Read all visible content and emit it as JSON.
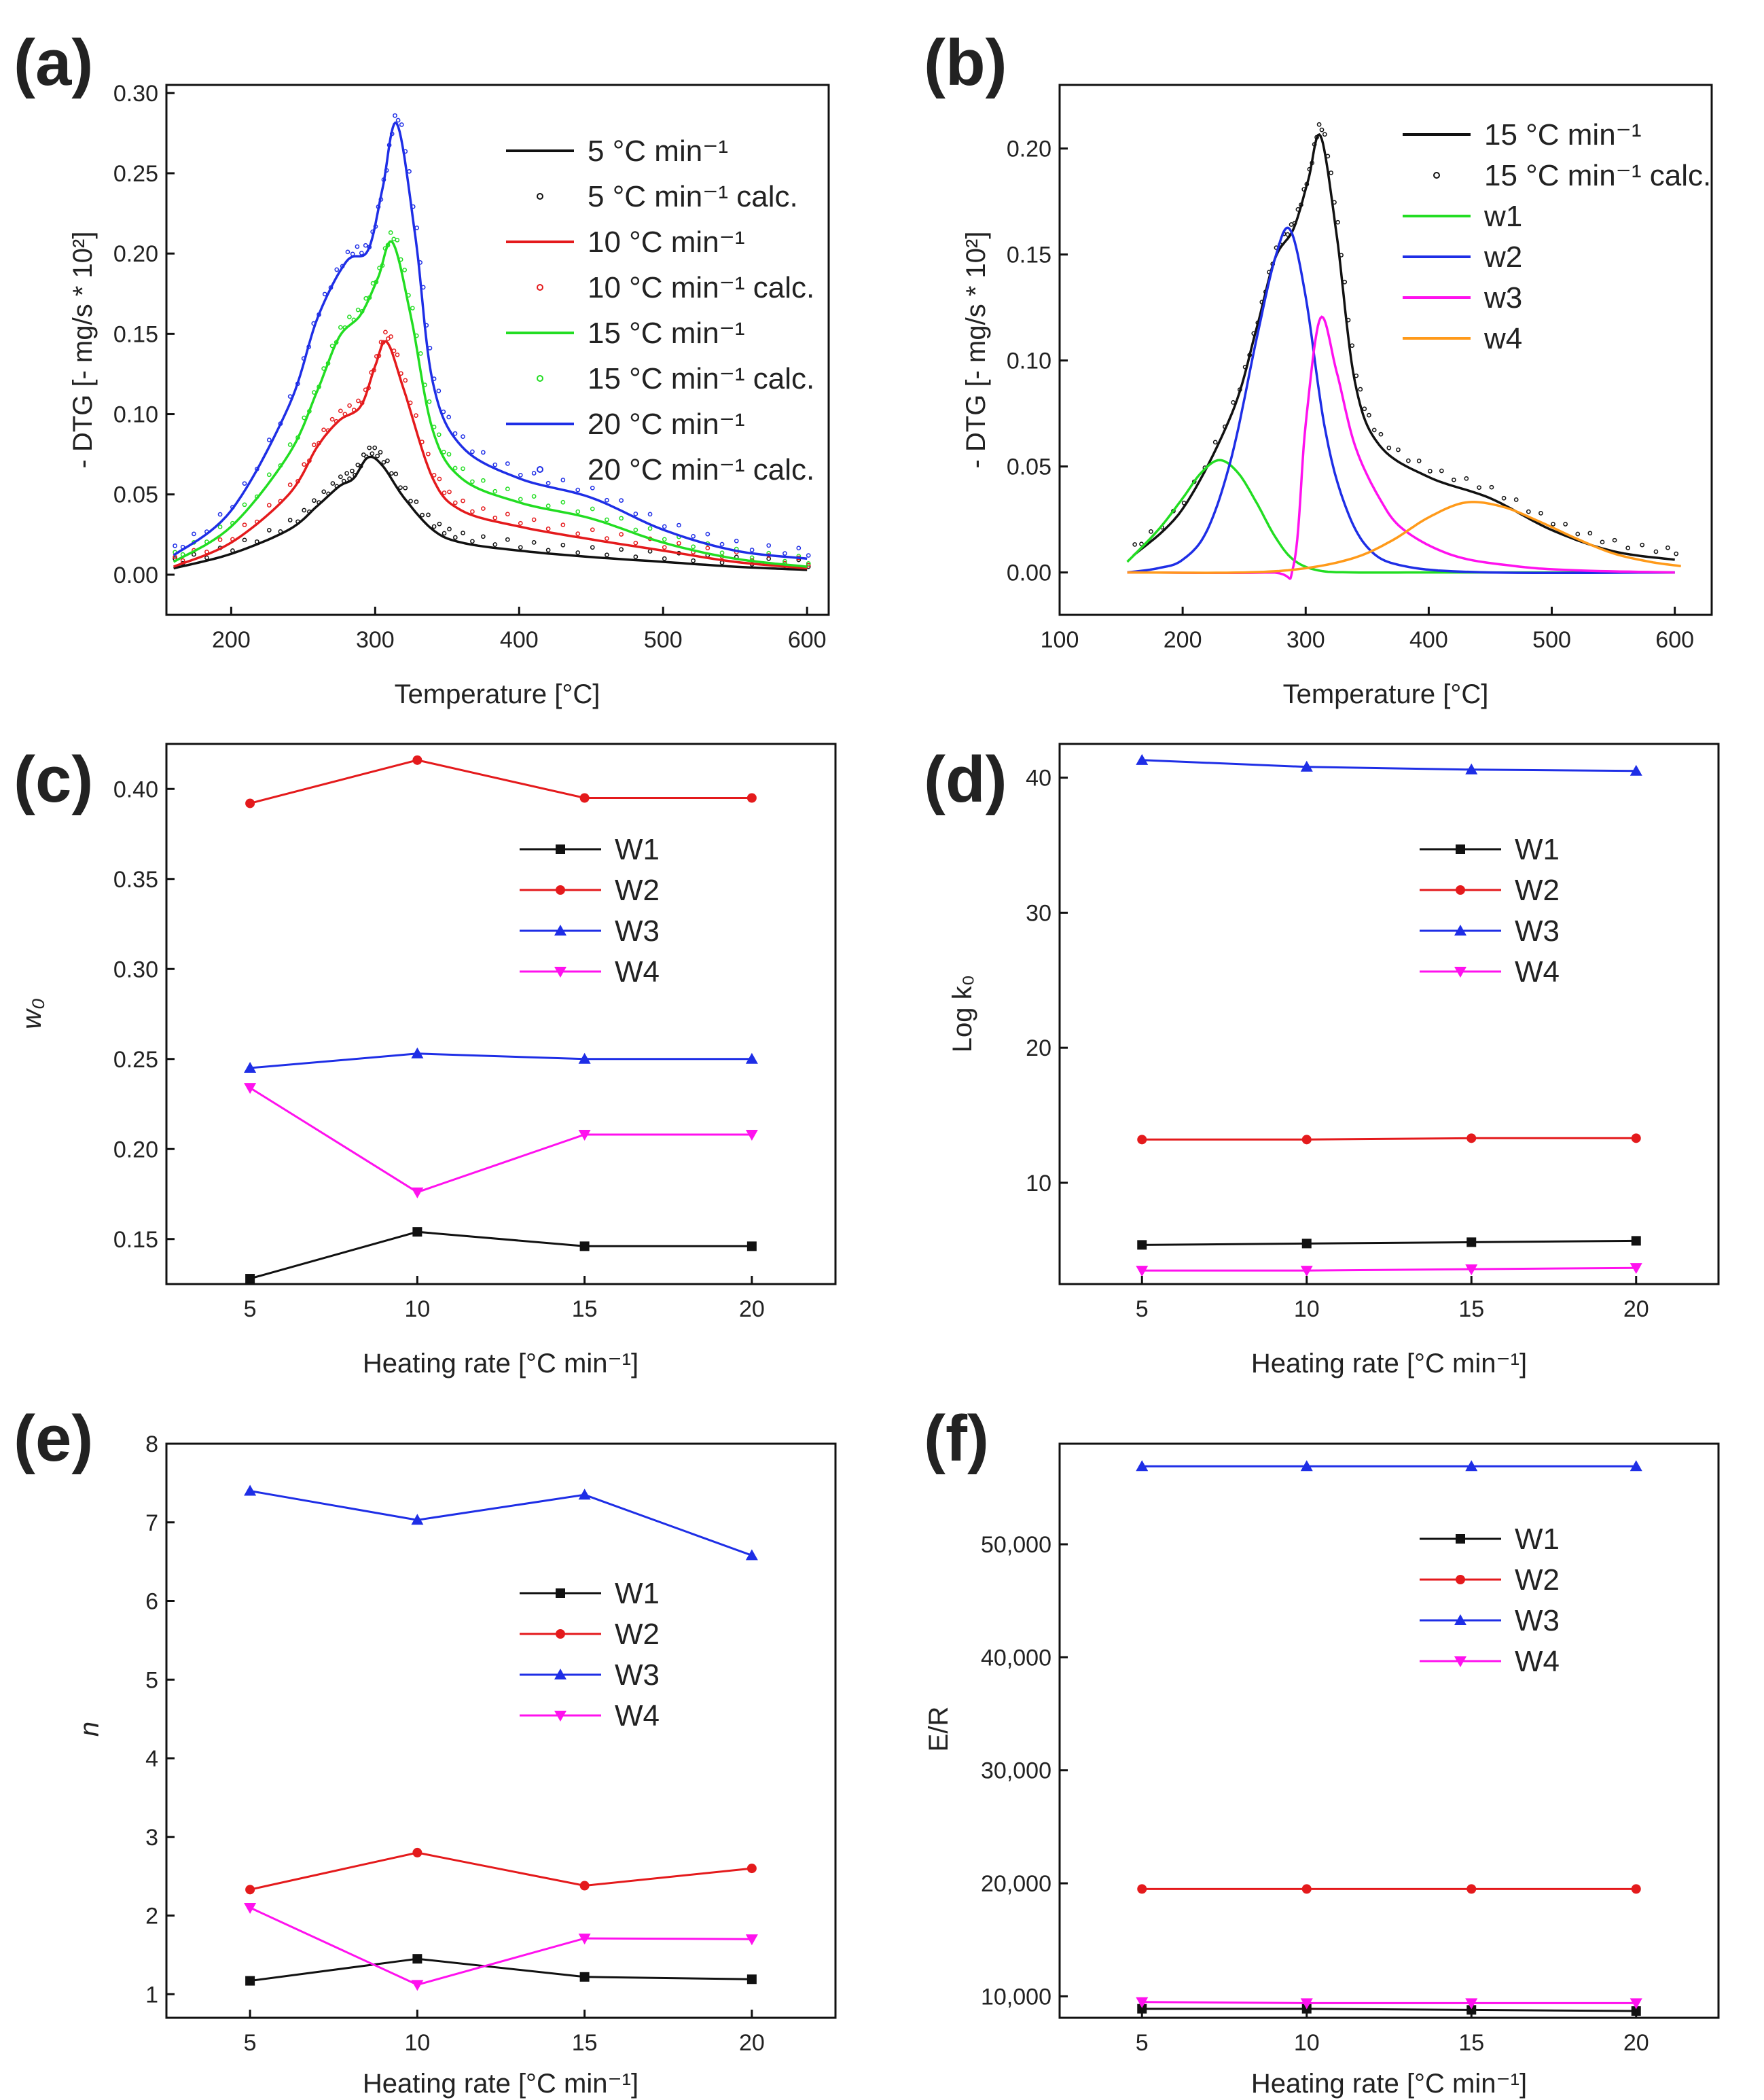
{
  "colors": {
    "black": "#111111",
    "red": "#e41a1c",
    "green": "#22dd22",
    "blue": "#1e2ee6",
    "magenta": "#ff11ee",
    "orange": "#ff9a1a",
    "axis": "#111111"
  },
  "chart_data": [
    {
      "id": "a",
      "panel_label": "(a)",
      "type": "line",
      "xlabel": "Temperature [°C]",
      "ylabel": "- DTG [- mg/s * 10²]",
      "xlim": [
        155,
        615
      ],
      "ylim": [
        -0.025,
        0.305
      ],
      "xticks": [
        200,
        300,
        400,
        500,
        600
      ],
      "yticks": [
        0.0,
        0.05,
        0.1,
        0.15,
        0.2,
        0.25,
        0.3
      ],
      "ytick_labels": [
        "0.00",
        "0.05",
        "0.10",
        "0.15",
        "0.20",
        "0.25",
        "0.30"
      ],
      "legend": [
        {
          "label": "5 °C min⁻¹",
          "color": "black",
          "style": "line"
        },
        {
          "label": "5 °C min⁻¹ calc.",
          "color": "black",
          "style": "dots"
        },
        {
          "label": "10 °C min⁻¹",
          "color": "red",
          "style": "line"
        },
        {
          "label": "10 °C min⁻¹ calc.",
          "color": "red",
          "style": "dots"
        },
        {
          "label": "15 °C min⁻¹",
          "color": "green",
          "style": "line"
        },
        {
          "label": "15 °C min⁻¹ calc.",
          "color": "green",
          "style": "dots"
        },
        {
          "label": "20 °C min⁻¹",
          "color": "blue",
          "style": "line"
        },
        {
          "label": "20 °C min⁻¹ calc.",
          "color": "blue",
          "style": "dots"
        }
      ],
      "series": [
        {
          "name": "5 °C min⁻¹",
          "color": "black",
          "x": [
            160,
            200,
            240,
            260,
            275,
            285,
            295,
            305,
            320,
            340,
            360,
            400,
            450,
            500,
            550,
            600
          ],
          "y": [
            0.004,
            0.013,
            0.028,
            0.043,
            0.055,
            0.06,
            0.073,
            0.068,
            0.048,
            0.028,
            0.02,
            0.015,
            0.011,
            0.008,
            0.005,
            0.003
          ]
        },
        {
          "name": "10 °C min⁻¹",
          "color": "red",
          "x": [
            160,
            200,
            240,
            260,
            275,
            290,
            300,
            308,
            320,
            340,
            360,
            400,
            450,
            500,
            550,
            600
          ],
          "y": [
            0.005,
            0.02,
            0.05,
            0.08,
            0.096,
            0.105,
            0.13,
            0.145,
            0.115,
            0.06,
            0.04,
            0.03,
            0.022,
            0.015,
            0.008,
            0.004
          ]
        },
        {
          "name": "15 °C min⁻¹",
          "color": "green",
          "x": [
            160,
            200,
            240,
            260,
            275,
            290,
            302,
            312,
            325,
            340,
            360,
            400,
            450,
            500,
            550,
            600
          ],
          "y": [
            0.008,
            0.03,
            0.075,
            0.115,
            0.148,
            0.162,
            0.185,
            0.207,
            0.16,
            0.09,
            0.06,
            0.045,
            0.035,
            0.02,
            0.01,
            0.005
          ]
        },
        {
          "name": "20 °C min⁻¹",
          "color": "blue",
          "x": [
            160,
            200,
            240,
            260,
            280,
            295,
            305,
            315,
            328,
            340,
            360,
            400,
            450,
            500,
            550,
            600
          ],
          "y": [
            0.012,
            0.04,
            0.105,
            0.16,
            0.195,
            0.202,
            0.24,
            0.281,
            0.21,
            0.12,
            0.08,
            0.06,
            0.048,
            0.028,
            0.015,
            0.01
          ]
        }
      ]
    },
    {
      "id": "b",
      "panel_label": "(b)",
      "type": "line",
      "xlabel": "Temperature [°C]",
      "ylabel": "- DTG [- mg/s * 10²]",
      "xlim": [
        100,
        630
      ],
      "ylim": [
        -0.02,
        0.23
      ],
      "xticks": [
        100,
        200,
        300,
        400,
        500,
        600
      ],
      "yticks": [
        0.0,
        0.05,
        0.1,
        0.15,
        0.2
      ],
      "ytick_labels": [
        "0.00",
        "0.05",
        "0.10",
        "0.15",
        "0.20"
      ],
      "legend": [
        {
          "label": "15 °C min⁻¹",
          "color": "black",
          "style": "line"
        },
        {
          "label": "15 °C min⁻¹ calc.",
          "color": "black",
          "style": "dots"
        },
        {
          "label": "w1",
          "color": "green",
          "style": "line"
        },
        {
          "label": "w2",
          "color": "blue",
          "style": "line"
        },
        {
          "label": "w3",
          "color": "magenta",
          "style": "line"
        },
        {
          "label": "w4",
          "color": "orange",
          "style": "line"
        }
      ],
      "series": [
        {
          "name": "15 °C min⁻¹",
          "color": "black",
          "x": [
            160,
            200,
            240,
            260,
            275,
            290,
            302,
            312,
            325,
            340,
            360,
            400,
            450,
            500,
            550,
            600
          ],
          "y": [
            0.008,
            0.03,
            0.075,
            0.115,
            0.148,
            0.162,
            0.185,
            0.206,
            0.16,
            0.09,
            0.06,
            0.045,
            0.035,
            0.02,
            0.01,
            0.006
          ]
        },
        {
          "name": "w1",
          "color": "green",
          "x": [
            155,
            180,
            200,
            215,
            230,
            245,
            260,
            275,
            290,
            310,
            340,
            400,
            600
          ],
          "y": [
            0.005,
            0.02,
            0.035,
            0.047,
            0.053,
            0.047,
            0.033,
            0.017,
            0.006,
            0.001,
            0.0,
            0.0,
            0.0
          ]
        },
        {
          "name": "w2",
          "color": "blue",
          "x": [
            155,
            180,
            200,
            220,
            240,
            260,
            275,
            287,
            300,
            315,
            330,
            350,
            380,
            450,
            600
          ],
          "y": [
            0.0,
            0.002,
            0.006,
            0.02,
            0.055,
            0.11,
            0.148,
            0.162,
            0.13,
            0.07,
            0.035,
            0.012,
            0.003,
            0.0,
            0.0
          ]
        },
        {
          "name": "w3",
          "color": "magenta",
          "x": [
            155,
            270,
            290,
            300,
            312,
            325,
            340,
            360,
            380,
            420,
            470,
            520,
            600
          ],
          "y": [
            0.0,
            0.0,
            0.003,
            0.07,
            0.12,
            0.095,
            0.06,
            0.035,
            0.02,
            0.008,
            0.003,
            0.001,
            0.0
          ]
        },
        {
          "name": "w4",
          "color": "orange",
          "x": [
            155,
            250,
            300,
            340,
            370,
            400,
            430,
            460,
            490,
            520,
            550,
            580,
            605
          ],
          "y": [
            0.0,
            0.0,
            0.002,
            0.007,
            0.015,
            0.026,
            0.033,
            0.031,
            0.024,
            0.016,
            0.009,
            0.005,
            0.003
          ]
        }
      ]
    },
    {
      "id": "c",
      "panel_label": "(c)",
      "type": "line",
      "xlabel": "Heating rate [°C min⁻¹]",
      "ylabel": "w₀",
      "x": [
        5,
        10,
        15,
        20
      ],
      "xlim": [
        2.5,
        22.5
      ],
      "ylim": [
        0.125,
        0.425
      ],
      "xticks": [
        5,
        10,
        15,
        20
      ],
      "yticks": [
        0.15,
        0.2,
        0.25,
        0.3,
        0.35,
        0.4
      ],
      "ytick_labels": [
        "0.15",
        "0.20",
        "0.25",
        "0.30",
        "0.35",
        "0.40"
      ],
      "series": [
        {
          "name": "W1",
          "color": "black",
          "marker": "square",
          "values": [
            0.128,
            0.154,
            0.146,
            0.146
          ]
        },
        {
          "name": "W2",
          "color": "red",
          "marker": "circle",
          "values": [
            0.392,
            0.416,
            0.395,
            0.395
          ]
        },
        {
          "name": "W3",
          "color": "blue",
          "marker": "triangle-up",
          "values": [
            0.245,
            0.253,
            0.25,
            0.25
          ]
        },
        {
          "name": "W4",
          "color": "magenta",
          "marker": "triangle-down",
          "values": [
            0.234,
            0.176,
            0.208,
            0.208
          ]
        }
      ]
    },
    {
      "id": "d",
      "panel_label": "(d)",
      "type": "line",
      "xlabel": "Heating rate [°C min⁻¹]",
      "ylabel": "Log k₀",
      "x": [
        5,
        10,
        15,
        20
      ],
      "xlim": [
        2.5,
        22.5
      ],
      "ylim": [
        2.5,
        42.5
      ],
      "xticks": [
        5,
        10,
        15,
        20
      ],
      "yticks": [
        10,
        20,
        30,
        40
      ],
      "ytick_labels": [
        "10",
        "20",
        "30",
        "40"
      ],
      "series": [
        {
          "name": "W1",
          "color": "black",
          "marker": "square",
          "values": [
            5.4,
            5.5,
            5.6,
            5.7
          ]
        },
        {
          "name": "W2",
          "color": "red",
          "marker": "circle",
          "values": [
            13.2,
            13.2,
            13.3,
            13.3
          ]
        },
        {
          "name": "W3",
          "color": "blue",
          "marker": "triangle-up",
          "values": [
            41.3,
            40.8,
            40.6,
            40.5
          ]
        },
        {
          "name": "W4",
          "color": "magenta",
          "marker": "triangle-down",
          "values": [
            3.5,
            3.5,
            3.6,
            3.7
          ]
        }
      ]
    },
    {
      "id": "e",
      "panel_label": "(e)",
      "type": "line",
      "xlabel": "Heating rate [°C min⁻¹]",
      "ylabel": "n",
      "x": [
        5,
        10,
        15,
        20
      ],
      "xlim": [
        2.5,
        22.5
      ],
      "ylim": [
        0.7,
        8.0
      ],
      "xticks": [
        5,
        10,
        15,
        20
      ],
      "yticks": [
        1,
        2,
        3,
        4,
        5,
        6,
        7,
        8
      ],
      "ytick_labels": [
        "1",
        "2",
        "3",
        "4",
        "5",
        "6",
        "7",
        "8"
      ],
      "series": [
        {
          "name": "W1",
          "color": "black",
          "marker": "square",
          "values": [
            1.17,
            1.45,
            1.22,
            1.19
          ]
        },
        {
          "name": "W2",
          "color": "red",
          "marker": "circle",
          "values": [
            2.33,
            2.8,
            2.38,
            2.6
          ]
        },
        {
          "name": "W3",
          "color": "blue",
          "marker": "triangle-up",
          "values": [
            7.4,
            7.03,
            7.35,
            6.58
          ]
        },
        {
          "name": "W4",
          "color": "magenta",
          "marker": "triangle-down",
          "values": [
            2.1,
            1.12,
            1.71,
            1.7
          ]
        }
      ]
    },
    {
      "id": "f",
      "panel_label": "(f)",
      "type": "line",
      "xlabel": "Heating rate [°C min⁻¹]",
      "ylabel": "E/R",
      "x": [
        5,
        10,
        15,
        20
      ],
      "xlim": [
        2.5,
        22.5
      ],
      "ylim": [
        8100,
        58900
      ],
      "xticks": [
        5,
        10,
        15,
        20
      ],
      "yticks": [
        10000,
        20000,
        30000,
        40000,
        50000
      ],
      "ytick_labels": [
        "10,000",
        "20,000",
        "30,000",
        "40,000",
        "50,000"
      ],
      "series": [
        {
          "name": "W1",
          "color": "black",
          "marker": "square",
          "values": [
            8900,
            8900,
            8800,
            8700
          ]
        },
        {
          "name": "W2",
          "color": "red",
          "marker": "circle",
          "values": [
            19500,
            19500,
            19500,
            19500
          ]
        },
        {
          "name": "W3",
          "color": "blue",
          "marker": "triangle-up",
          "values": [
            56900,
            56900,
            56900,
            56900
          ]
        },
        {
          "name": "W4",
          "color": "magenta",
          "marker": "triangle-down",
          "values": [
            9500,
            9400,
            9400,
            9400
          ]
        }
      ]
    }
  ]
}
